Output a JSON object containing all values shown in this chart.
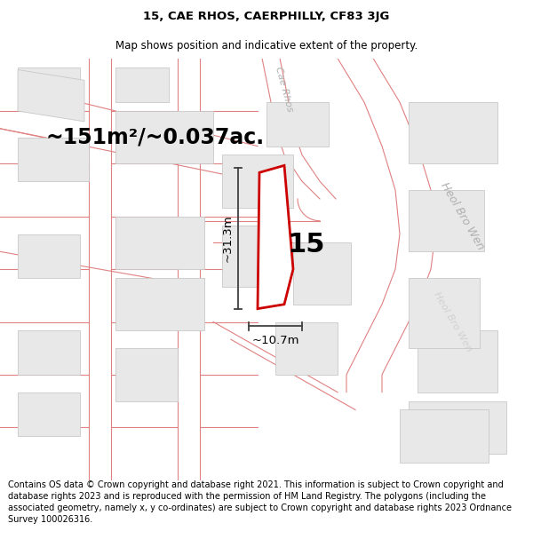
{
  "title_line1": "15, CAE RHOS, CAERPHILLY, CF83 3JG",
  "title_line2": "Map shows position and indicative extent of the property.",
  "footer_text": "Contains OS data © Crown copyright and database right 2021. This information is subject to Crown copyright and database rights 2023 and is reproduced with the permission of HM Land Registry. The polygons (including the associated geometry, namely x, y co-ordinates) are subject to Crown copyright and database rights 2023 Ordnance Survey 100026316.",
  "area_text": "~151m²/~0.037ac.",
  "dimension_width": "~10.7m",
  "dimension_height": "~31.3m",
  "plot_number": "15",
  "background_color": "#ffffff",
  "plot_outline_color": "#cc0000",
  "road_color": "#f0a0a0",
  "road_line_color": "#e08080",
  "building_color": "#e8e8e8",
  "building_edge_color": "#c8c8c8",
  "road_label_color": "#b0b0b0",
  "dim_line_color": "#404040"
}
